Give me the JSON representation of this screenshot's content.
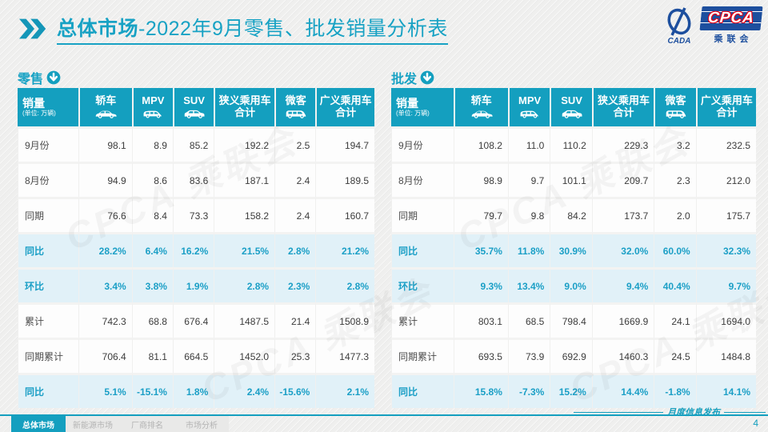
{
  "header": {
    "title_bold": "总体市场",
    "title_rest": "-2022年9月零售、批发销量分析表"
  },
  "logo": {
    "cada_text": "CADA",
    "cpca_text": "CPCA",
    "sub_text": "乘联会"
  },
  "watermark_text": "CPCA 乘联会",
  "colors": {
    "accent": "#149fbf",
    "accent_text": "#18a2c4",
    "percent_row_bg": "#e1f1f8",
    "percent_text": "#1b9fc6",
    "logo_blue": "#1d4f9e",
    "logo_red": "#e60012"
  },
  "tables": [
    {
      "label": "零售",
      "columns": [
        {
          "label": "销量",
          "sub": "(单位: 万辆)"
        },
        {
          "label": "轿车",
          "icon": "sedan-icon"
        },
        {
          "label": "MPV",
          "icon": "mpv-icon"
        },
        {
          "label": "SUV",
          "icon": "suv-icon"
        },
        {
          "label": "狭义乘用车",
          "label2": "合计"
        },
        {
          "label": "微客",
          "icon": "minibus-icon"
        },
        {
          "label": "广义乘用车",
          "label2": "合计"
        }
      ],
      "rows": [
        {
          "label": "9月份",
          "type": "normal",
          "values": [
            "98.1",
            "8.9",
            "85.2",
            "192.2",
            "2.5",
            "194.7"
          ]
        },
        {
          "label": "8月份",
          "type": "normal",
          "values": [
            "94.9",
            "8.6",
            "83.6",
            "187.1",
            "2.4",
            "189.5"
          ]
        },
        {
          "label": "同期",
          "type": "normal",
          "values": [
            "76.6",
            "8.4",
            "73.3",
            "158.2",
            "2.4",
            "160.7"
          ]
        },
        {
          "label": "同比",
          "type": "percent",
          "values": [
            "28.2%",
            "6.4%",
            "16.2%",
            "21.5%",
            "2.8%",
            "21.2%"
          ]
        },
        {
          "label": "环比",
          "type": "percent",
          "values": [
            "3.4%",
            "3.8%",
            "1.9%",
            "2.8%",
            "2.3%",
            "2.8%"
          ]
        },
        {
          "label": "累计",
          "type": "normal",
          "values": [
            "742.3",
            "68.8",
            "676.4",
            "1487.5",
            "21.4",
            "1508.9"
          ]
        },
        {
          "label": "同期累计",
          "type": "normal",
          "values": [
            "706.4",
            "81.1",
            "664.5",
            "1452.0",
            "25.3",
            "1477.3"
          ]
        },
        {
          "label": "同比",
          "type": "percent",
          "values": [
            "5.1%",
            "-15.1%",
            "1.8%",
            "2.4%",
            "-15.6%",
            "2.1%"
          ]
        }
      ]
    },
    {
      "label": "批发",
      "columns": [
        {
          "label": "销量",
          "sub": "(单位: 万辆)"
        },
        {
          "label": "轿车",
          "icon": "sedan-icon"
        },
        {
          "label": "MPV",
          "icon": "mpv-icon"
        },
        {
          "label": "SUV",
          "icon": "suv-icon"
        },
        {
          "label": "狭义乘用车",
          "label2": "合计"
        },
        {
          "label": "微客",
          "icon": "minibus-icon"
        },
        {
          "label": "广义乘用车",
          "label2": "合计"
        }
      ],
      "rows": [
        {
          "label": "9月份",
          "type": "normal",
          "values": [
            "108.2",
            "11.0",
            "110.2",
            "229.3",
            "3.2",
            "232.5"
          ]
        },
        {
          "label": "8月份",
          "type": "normal",
          "values": [
            "98.9",
            "9.7",
            "101.1",
            "209.7",
            "2.3",
            "212.0"
          ]
        },
        {
          "label": "同期",
          "type": "normal",
          "values": [
            "79.7",
            "9.8",
            "84.2",
            "173.7",
            "2.0",
            "175.7"
          ]
        },
        {
          "label": "同比",
          "type": "percent",
          "values": [
            "35.7%",
            "11.8%",
            "30.9%",
            "32.0%",
            "60.0%",
            "32.3%"
          ]
        },
        {
          "label": "环比",
          "type": "percent",
          "values": [
            "9.3%",
            "13.4%",
            "9.0%",
            "9.4%",
            "40.4%",
            "9.7%"
          ]
        },
        {
          "label": "累计",
          "type": "normal",
          "values": [
            "803.1",
            "68.5",
            "798.4",
            "1669.9",
            "24.1",
            "1694.0"
          ]
        },
        {
          "label": "同期累计",
          "type": "normal",
          "values": [
            "693.5",
            "73.9",
            "692.9",
            "1460.3",
            "24.5",
            "1484.8"
          ]
        },
        {
          "label": "同比",
          "type": "percent",
          "values": [
            "15.8%",
            "-7.3%",
            "15.2%",
            "14.4%",
            "-1.8%",
            "14.1%"
          ]
        }
      ]
    }
  ],
  "footer": {
    "tabs": [
      {
        "label": "总体市场",
        "active": true
      },
      {
        "label": "新能源市场",
        "active": false
      },
      {
        "label": "厂商排名",
        "active": false
      },
      {
        "label": "市场分析",
        "active": false
      }
    ],
    "release_label": "月度信息发布",
    "page_number": "4"
  }
}
